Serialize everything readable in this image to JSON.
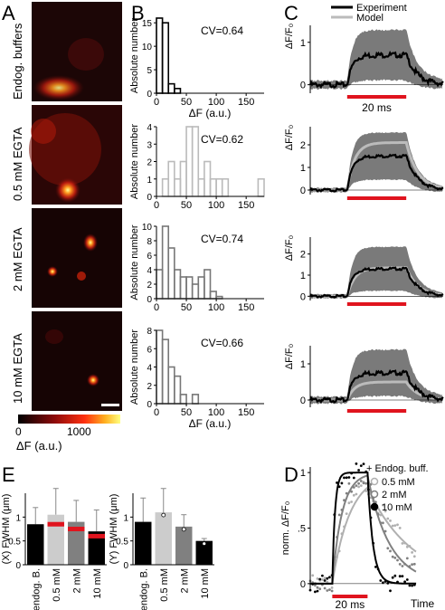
{
  "panel_letters": {
    "a": "A",
    "b": "B",
    "c": "C",
    "d": "D",
    "e": "E"
  },
  "colors": {
    "experiment": "#000000",
    "model": "#bbbbbb",
    "band": "#7a7a7a",
    "stim_bar": "#e0141e",
    "bar_endog": "#000000",
    "bar_05": "#cccccc",
    "bar_2": "#808080",
    "bar_10": "#000000",
    "heat_bg": "#1c0606"
  },
  "panelA": {
    "row_labels": [
      "Endog. buffers",
      "0.5 mM EGTA",
      "2 mM EGTA",
      "10 mM EGTA"
    ],
    "colorbar": {
      "min_label": "0",
      "max_label": "1000",
      "axis_label": "ΔF (a.u.)"
    }
  },
  "chart_data": [
    {
      "type": "bar",
      "panel": "B1",
      "xlabel": "ΔF (a.u.)",
      "ylabel": "Absolute number",
      "annotation": "CV=0.64",
      "bin_width": 10,
      "bin_starts": [
        0,
        10,
        20,
        30
      ],
      "values": [
        16,
        15,
        2,
        1
      ],
      "xlim": [
        0,
        180
      ],
      "ylim": [
        0,
        16
      ],
      "xticks": [
        "0",
        "50",
        "100",
        "150"
      ],
      "yticks": [
        "0",
        "5",
        "10",
        "15"
      ],
      "edge_color": "#000000"
    },
    {
      "type": "bar",
      "panel": "B2",
      "ylabel": "Absolute number",
      "annotation": "CV=0.62",
      "bin_width": 10,
      "bin_starts": [
        10,
        20,
        30,
        40,
        50,
        60,
        70,
        80,
        90,
        100,
        110,
        120,
        130,
        140,
        150,
        160,
        170
      ],
      "values": [
        1,
        2,
        1,
        2,
        4,
        4,
        1,
        2,
        1,
        1,
        1,
        0,
        0,
        0,
        0,
        0,
        1
      ],
      "xlim": [
        0,
        180
      ],
      "ylim": [
        0,
        4
      ],
      "xticks": [
        "0",
        "50",
        "100",
        "150"
      ],
      "yticks": [
        "0",
        "1",
        "2",
        "3",
        "4"
      ],
      "edge_color": "#bbbbbb"
    },
    {
      "type": "bar",
      "panel": "B3",
      "ylabel": "Absolute number",
      "annotation": "CV=0.74",
      "bin_width": 10,
      "bin_starts": [
        0,
        10,
        20,
        30,
        40,
        50,
        60,
        70,
        80,
        90,
        100
      ],
      "values": [
        4,
        10,
        7,
        4,
        3,
        3,
        2,
        3,
        4,
        1,
        0.3
      ],
      "xlim": [
        0,
        180
      ],
      "ylim": [
        0,
        10
      ],
      "xticks": [
        "0",
        "50",
        "100",
        "150"
      ],
      "yticks": [
        "0",
        "2",
        "4",
        "6",
        "8",
        "10"
      ],
      "edge_color": "#777777"
    },
    {
      "type": "bar",
      "panel": "B4",
      "xlabel": "ΔF (a.u.)",
      "ylabel": "Absolute number",
      "annotation": "CV=0.66",
      "bin_width": 10,
      "bin_starts": [
        0,
        10,
        20,
        30,
        40,
        50,
        60
      ],
      "values": [
        8,
        7,
        4,
        3,
        1,
        0,
        1
      ],
      "xlim": [
        0,
        180
      ],
      "ylim": [
        0,
        8
      ],
      "xticks": [
        "0",
        "50",
        "100",
        "150"
      ],
      "yticks": [
        "0",
        "2",
        "4",
        "6",
        "8"
      ],
      "edge_color": "#777777"
    },
    {
      "type": "line",
      "panel": "C1",
      "ylabel": "ΔF/F₀",
      "ylim": [
        -0.2,
        1.4
      ],
      "yticks": [
        "0",
        "1"
      ],
      "plateau_exp": 0.7,
      "plateau_model": null,
      "band_half": 0.5,
      "stim_label": "20 ms",
      "legend": [
        "Experiment",
        "Model"
      ]
    },
    {
      "type": "line",
      "panel": "C2",
      "ylabel": "ΔF/F₀",
      "ylim": [
        -0.2,
        2.8
      ],
      "yticks": [
        "0",
        "1",
        "2"
      ],
      "plateau_exp": 1.5,
      "plateau_model": 2.1,
      "band_half": 0.95
    },
    {
      "type": "line",
      "panel": "C3",
      "ylabel": "ΔF/F₀",
      "ylim": [
        -0.2,
        2.8
      ],
      "yticks": [
        "0",
        "1",
        "2"
      ],
      "plateau_exp": 1.3,
      "plateau_model": 1.35,
      "band_half": 0.95
    },
    {
      "type": "line",
      "panel": "C4",
      "ylabel": "ΔF/F₀",
      "ylim": [
        -0.2,
        1.5
      ],
      "yticks": [
        "0",
        "1"
      ],
      "plateau_exp": 0.75,
      "plateau_model": 0.5,
      "band_half": 0.55
    },
    {
      "type": "line",
      "panel": "D",
      "ylabel": "norm. ΔF/F₀",
      "ylim": [
        -0.05,
        1.05
      ],
      "yticks": [
        "0",
        ".5",
        "1"
      ],
      "xlabel": "Time",
      "stim_label": "20 ms",
      "legend_title": "+ Endog. buff.",
      "series": [
        {
          "name": "0.5 mM",
          "rise_tau": 4.0,
          "decay_tau": 10,
          "color": "#b0b0b0"
        },
        {
          "name": "2 mM",
          "rise_tau": 2.2,
          "decay_tau": 5,
          "color": "#808080"
        },
        {
          "name": "10 mM",
          "rise_tau": 0.6,
          "decay_tau": 1.2,
          "color": "#000000"
        }
      ]
    },
    {
      "type": "bar",
      "panel": "E1",
      "ylabel": "(X) FWHM (μm)",
      "categories": [
        "endog. B.",
        "0.5 mM",
        "2 mM",
        "10 mM"
      ],
      "values": [
        0.85,
        1.05,
        0.9,
        0.7
      ],
      "errors": [
        0.35,
        0.55,
        0.45,
        0.45
      ],
      "model_values": [
        null,
        0.85,
        0.75,
        0.6
      ],
      "ylim": [
        0,
        1.5
      ],
      "yticks": [
        "0",
        "0.5",
        "1"
      ]
    },
    {
      "type": "bar",
      "panel": "E2",
      "ylabel": "(Y) FWHM (μm)",
      "categories": [
        "endog. B.",
        "0.5 mM",
        "2 mM",
        "10 mM"
      ],
      "values": [
        0.9,
        1.1,
        0.8,
        0.5
      ],
      "errors": [
        0.5,
        0.5,
        0.25,
        0.05
      ],
      "ylim": [
        0,
        1.5
      ],
      "yticks": [
        "0",
        "0.5",
        "1"
      ]
    }
  ]
}
